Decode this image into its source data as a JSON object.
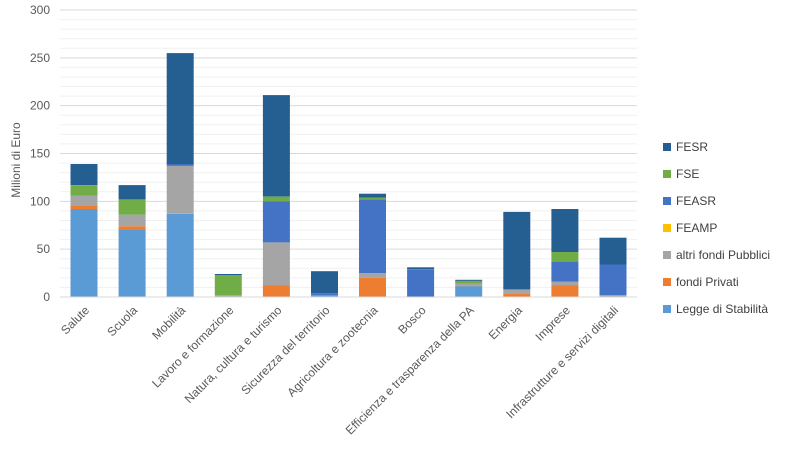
{
  "chart_data": {
    "type": "bar",
    "stacked": true,
    "ylabel": "Milioni di Euro",
    "ylim": [
      0,
      300
    ],
    "yticks": [
      0,
      50,
      100,
      150,
      200,
      250,
      300
    ],
    "grid": true,
    "legend_position": "right",
    "categories": [
      "Salute",
      "Scuola",
      "Mobilità",
      "Lavoro e formazione",
      "Natura, cultura e turismo",
      "Sicurezza del territorio",
      "Agricoltura e zootecnia",
      "Bosco",
      "Efficienza e trasparenza della PA",
      "Energia",
      "Imprese",
      "Infrastrutture e servizi digitali"
    ],
    "series": [
      {
        "name": "Legge di Stabilità",
        "color": "#5B9BD5",
        "values": [
          92,
          71,
          87,
          0,
          0,
          2,
          0,
          0,
          11,
          0,
          0,
          0
        ]
      },
      {
        "name": "fondi Privati",
        "color": "#ED7D31",
        "values": [
          4,
          3,
          0,
          0,
          12,
          0,
          20,
          0,
          0,
          4,
          12,
          0
        ]
      },
      {
        "name": "altri fondi Pubblici",
        "color": "#A5A5A5",
        "values": [
          10,
          12,
          50,
          2,
          45,
          0,
          5,
          0,
          3,
          4,
          4,
          2
        ]
      },
      {
        "name": "FEAMP",
        "color": "#FFC000",
        "values": [
          0,
          0,
          0,
          0,
          0,
          0,
          0,
          0,
          0,
          0,
          0,
          0
        ]
      },
      {
        "name": "FEASR",
        "color": "#4472C4",
        "values": [
          0,
          0,
          2,
          0,
          43,
          2,
          77,
          29,
          0,
          0,
          21,
          32
        ]
      },
      {
        "name": "FSE",
        "color": "#70AD47",
        "values": [
          11,
          16,
          0,
          21,
          5,
          0,
          2,
          0,
          3,
          0,
          10,
          0
        ]
      },
      {
        "name": "FESR",
        "color": "#255E91",
        "values": [
          22,
          15,
          116,
          1,
          106,
          23,
          4,
          2,
          1,
          81,
          45,
          28
        ]
      }
    ]
  }
}
